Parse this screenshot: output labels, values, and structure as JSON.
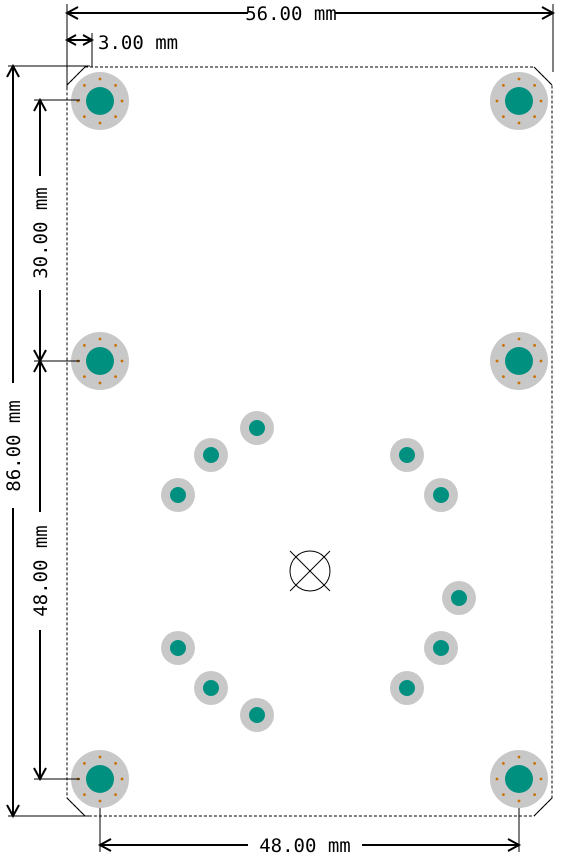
{
  "dimensions": {
    "top_width": "56.00 mm",
    "corner_chamfer": "3.00 mm",
    "bottom_spacing": "48.00 mm",
    "left_height": "86.00 mm",
    "left_upper": "30.00 mm",
    "left_lower": "48.00 mm"
  },
  "colors": {
    "pad_copper": "#c8c8c8",
    "drill": "#009080",
    "via": "#c87000",
    "board_outline": "#000000",
    "dimension_line": "#000000"
  },
  "icons": {
    "center_marker": "crossed-circle-icon",
    "mounting_hole": "plated-mounting-hole-icon"
  }
}
